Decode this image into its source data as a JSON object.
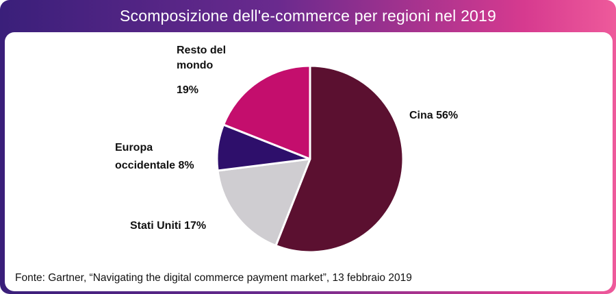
{
  "title": "Scomposizione dell'e-commerce per regioni nel 2019",
  "source": "Fonte: Gartner, “Navigating the digital commerce payment market”, 13 febbraio 2019",
  "colors": {
    "cina": "#5b1030",
    "stati_uniti": "#cfcdd1",
    "europa": "#2e0f6b",
    "resto": "#c40e6d"
  },
  "chart_data": {
    "type": "pie",
    "start_angle_deg": 90,
    "direction": "clockwise",
    "slices": [
      {
        "key": "cina",
        "label_lines": [
          "Cina 56%"
        ],
        "value": 56
      },
      {
        "key": "stati_uniti",
        "label_lines": [
          "Stati Uniti 17%"
        ],
        "value": 17
      },
      {
        "key": "europa",
        "label_lines": [
          "Europa",
          "occidentale 8%"
        ],
        "value": 8
      },
      {
        "key": "resto",
        "label_lines": [
          "Resto del",
          "mondo",
          "19%"
        ],
        "value": 19
      }
    ]
  }
}
